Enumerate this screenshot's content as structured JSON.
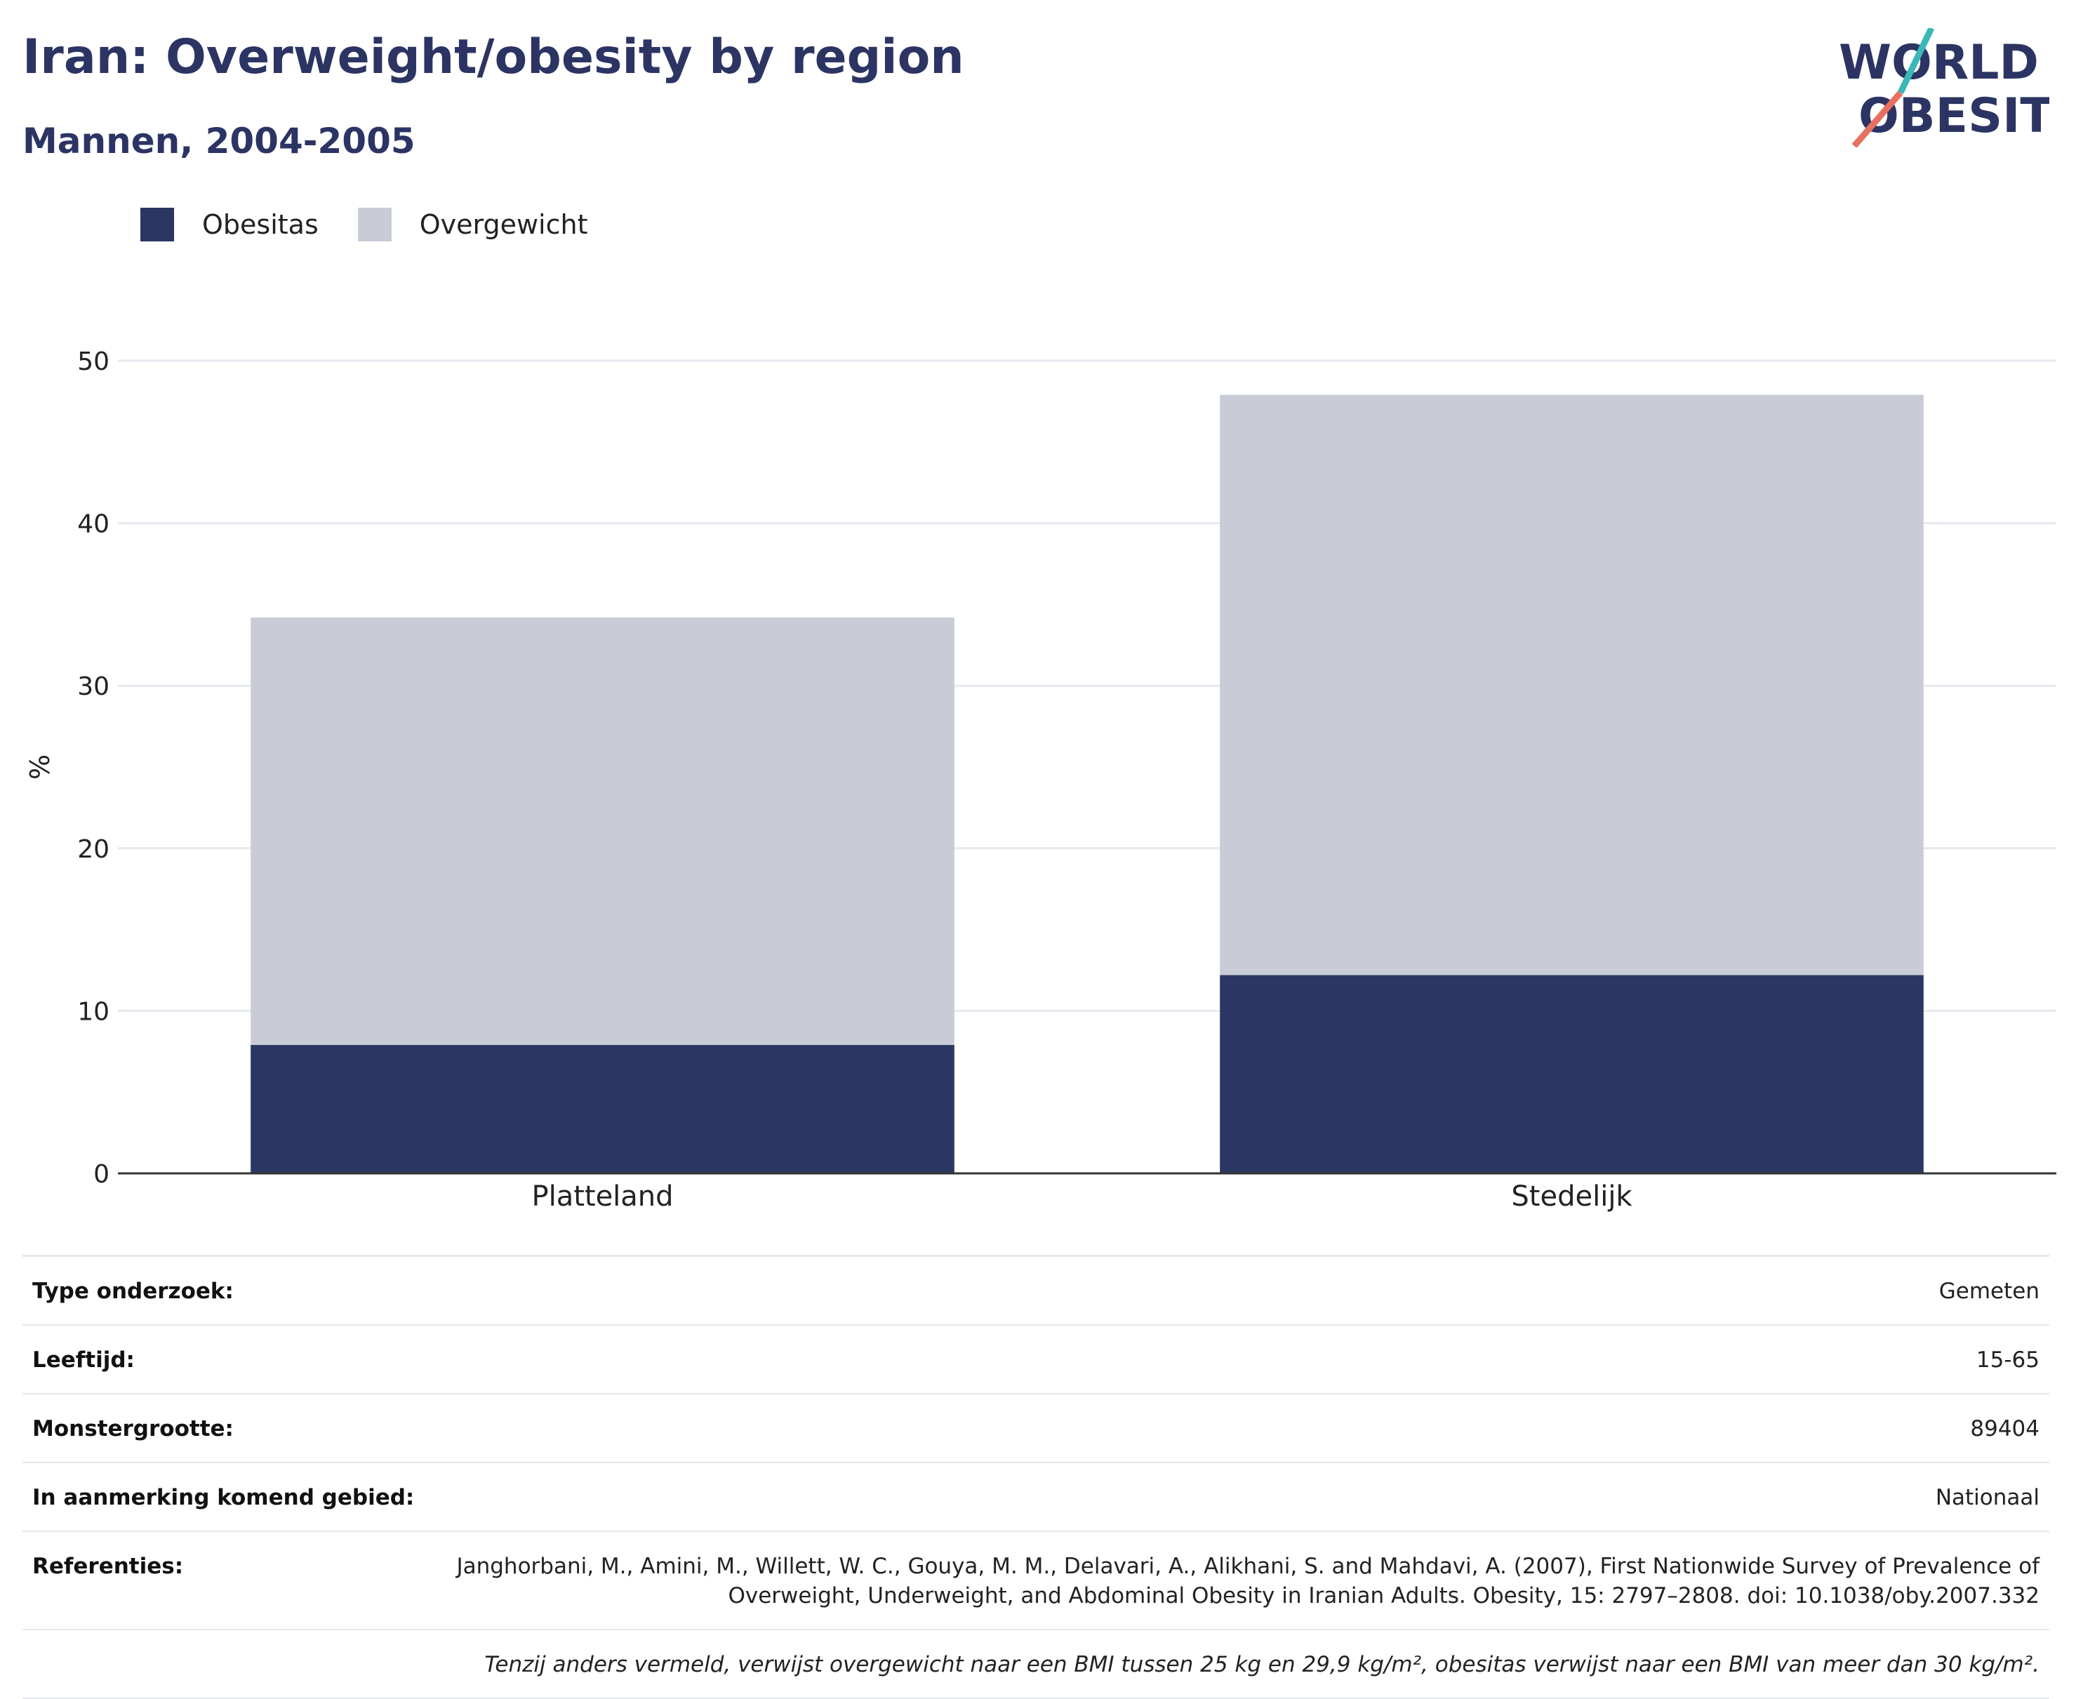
{
  "title": "Iran: Overweight/obesity by region",
  "subtitle": "Mannen, 2004-2005",
  "logo": {
    "line1": "WORLD",
    "line2": "OBESITY",
    "accent_teal": "#3ab8b8",
    "accent_coral": "#e8705f",
    "text_color": "#2b3463"
  },
  "colors": {
    "obesitas": "#2b3663",
    "overgewicht": "#c9ccd7",
    "heading": "#2b3463"
  },
  "chart_data": {
    "type": "bar",
    "stacked": true,
    "categories": [
      "Platteland",
      "Stedelijk"
    ],
    "series": [
      {
        "name": "Obesitas",
        "values": [
          7.9,
          12.2
        ]
      },
      {
        "name": "Overgewicht",
        "values": [
          26.3,
          35.7
        ]
      }
    ],
    "ylabel": "%",
    "xlabel": "",
    "ylim": [
      0,
      50
    ],
    "yticks": [
      0,
      10,
      20,
      30,
      40,
      50
    ],
    "grid": true,
    "legend": "top-left"
  },
  "meta": [
    {
      "key": "Type onderzoek:",
      "value": "Gemeten"
    },
    {
      "key": "Leeftijd:",
      "value": "15-65"
    },
    {
      "key": "Monstergrootte:",
      "value": "89404"
    },
    {
      "key": "In aanmerking komend gebied:",
      "value": "Nationaal"
    },
    {
      "key": "Referenties:",
      "value": "Janghorbani, M., Amini, M., Willett, W. C., Gouya, M. M., Delavari, A., Alikhani, S. and Mahdavi, A. (2007), First Nationwide Survey of Prevalence of Overweight, Underweight, and Abdominal Obesity in Iranian Adults. Obesity, 15: 2797–2808. doi: 10.1038/oby.2007.332"
    }
  ],
  "note": "Tenzij anders vermeld, verwijst overgewicht naar een BMI tussen 25 kg en 29,9 kg/m², obesitas verwijst naar een BMI van meer dan 30 kg/m²."
}
